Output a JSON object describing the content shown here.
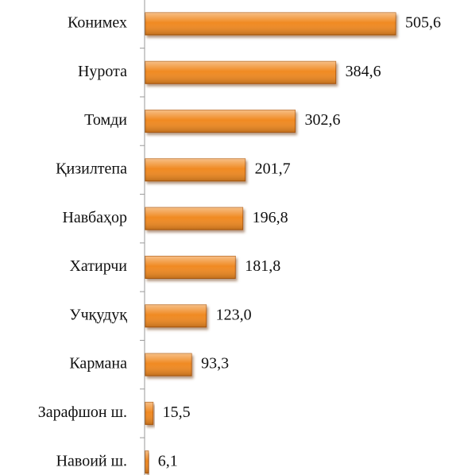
{
  "chart_data": {
    "type": "bar",
    "orientation": "horizontal",
    "categories": [
      "Конимех",
      "Нурота",
      "Томди",
      "Қизилтепа",
      "Навбаҳор",
      "Хатирчи",
      "Учқудуқ",
      "Кармана",
      "Зарафшон ш.",
      "Навоий ш."
    ],
    "values": [
      505.6,
      384.6,
      302.6,
      201.7,
      196.8,
      181.8,
      123.0,
      93.3,
      15.5,
      6.1
    ],
    "value_labels": [
      "505,6",
      "384,6",
      "302,6",
      "201,7",
      "196,8",
      "181,8",
      "123,0",
      "93,3",
      "15,5",
      "6,1"
    ],
    "color": "#f08a24"
  }
}
